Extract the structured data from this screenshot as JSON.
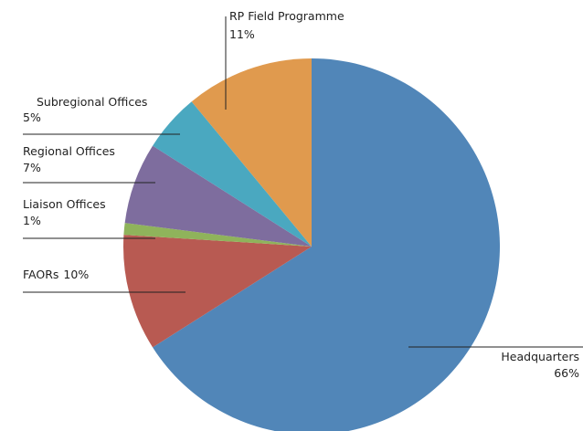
{
  "chart_data": {
    "type": "pie",
    "categories": [
      "Headquarters",
      "FAORs",
      "Liaison Offices",
      "Regional Offices",
      "Subregional Offices",
      "RP Field Programme"
    ],
    "values": [
      66,
      10,
      1,
      7,
      5,
      11
    ],
    "value_labels": [
      "66%",
      "10%",
      "1%",
      "7%",
      "5%",
      "11%"
    ],
    "colors": [
      "#5186b8",
      "#b85a52",
      "#8fb35b",
      "#7e6d9e",
      "#4aa8c0",
      "#e09a4e"
    ]
  }
}
